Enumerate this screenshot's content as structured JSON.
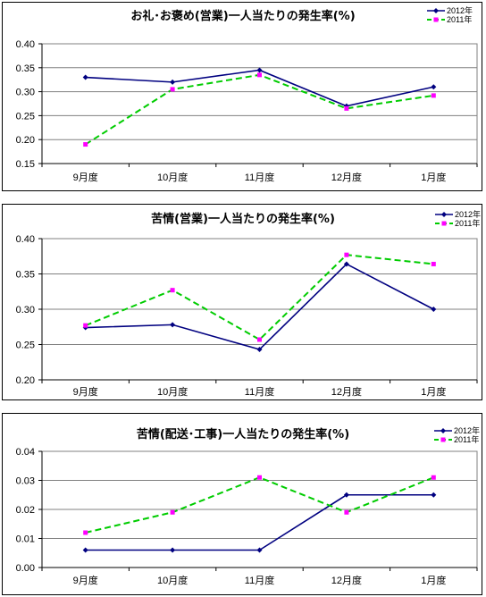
{
  "chart_data": [
    {
      "type": "line",
      "title": "お礼･お褒め(営業)一人当たりの発生率(%)",
      "categories": [
        "9月度",
        "10月度",
        "11月度",
        "12月度",
        "1月度"
      ],
      "y_ticks": [
        "0.40",
        "0.35",
        "0.30",
        "0.25",
        "0.20",
        "0.15"
      ],
      "ylim": [
        0.15,
        0.4
      ],
      "grid": true,
      "legend_position": "top-right",
      "series": [
        {
          "name": "2012年",
          "values": [
            0.33,
            0.32,
            0.345,
            0.27,
            0.31
          ],
          "color": "#000080",
          "style": "solid",
          "marker": "diamond"
        },
        {
          "name": "2011年",
          "values": [
            0.19,
            0.305,
            0.335,
            0.265,
            0.292
          ],
          "color": "#00cc00",
          "style": "dashed",
          "marker": "square",
          "marker_color": "#ff00ff"
        }
      ]
    },
    {
      "type": "line",
      "title": "苦情(営業)一人当たりの発生率(%)",
      "categories": [
        "9月度",
        "10月度",
        "11月度",
        "12月度",
        "1月度"
      ],
      "y_ticks": [
        "0.40",
        "0.35",
        "0.30",
        "0.25",
        "0.20"
      ],
      "ylim": [
        0.2,
        0.4
      ],
      "grid": true,
      "legend_position": "top-right",
      "series": [
        {
          "name": "2012年",
          "values": [
            0.274,
            0.278,
            0.243,
            0.364,
            0.3
          ],
          "color": "#000080",
          "style": "solid",
          "marker": "diamond"
        },
        {
          "name": "2011年",
          "values": [
            0.277,
            0.327,
            0.257,
            0.377,
            0.364
          ],
          "color": "#00cc00",
          "style": "dashed",
          "marker": "square",
          "marker_color": "#ff00ff"
        }
      ]
    },
    {
      "type": "line",
      "title": "苦情(配送･工事)一人当たりの発生率(%)",
      "categories": [
        "9月度",
        "10月度",
        "11月度",
        "12月度",
        "1月度"
      ],
      "y_ticks": [
        "0.04",
        "0.03",
        "0.02",
        "0.01",
        "0.00"
      ],
      "ylim": [
        0.0,
        0.04
      ],
      "grid": true,
      "legend_position": "top-right",
      "series": [
        {
          "name": "2012年",
          "values": [
            0.006,
            0.006,
            0.006,
            0.025,
            0.025
          ],
          "color": "#000080",
          "style": "solid",
          "marker": "diamond"
        },
        {
          "name": "2011年",
          "values": [
            0.012,
            0.019,
            0.031,
            0.019,
            0.031
          ],
          "color": "#00cc00",
          "style": "dashed",
          "marker": "square",
          "marker_color": "#ff00ff"
        }
      ]
    }
  ]
}
